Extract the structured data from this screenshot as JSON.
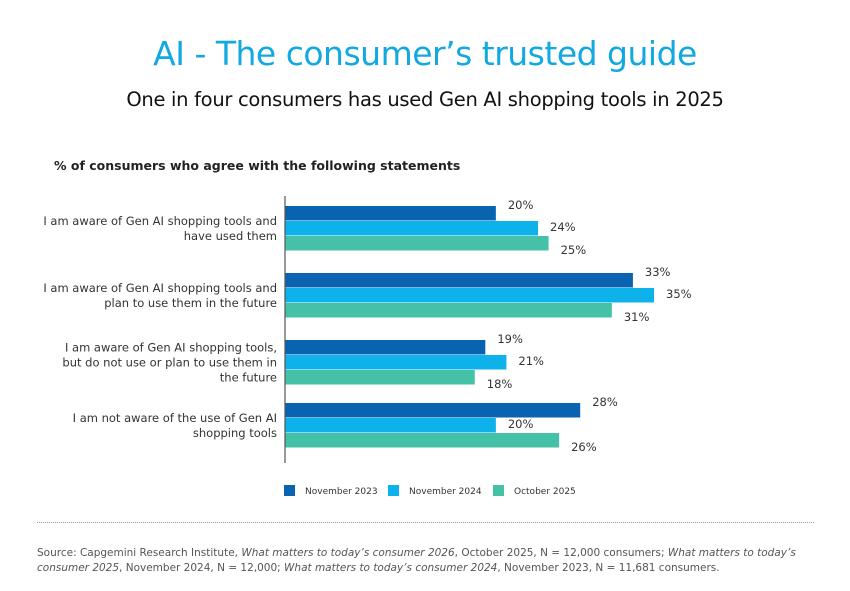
{
  "header": {
    "title": "AI - The consumer’s trusted guide",
    "subtitle": "One in four consumers has used Gen AI shopping tools in 2025"
  },
  "chart_data": {
    "type": "bar",
    "orientation": "horizontal",
    "title": "% of consumers who agree with the following statements",
    "xlabel": "",
    "ylabel": "",
    "xlim": [
      0,
      35
    ],
    "grid": false,
    "legend_position": "bottom",
    "categories": [
      [
        "I am aware of Gen AI shopping tools and",
        "have used them"
      ],
      [
        "I am aware of Gen AI shopping tools and",
        "plan to use them in the future"
      ],
      [
        "I am aware of Gen AI shopping tools,",
        "but do not use or plan to use them in",
        "the future"
      ],
      [
        "I am not aware of the use of Gen AI",
        "shopping tools"
      ]
    ],
    "series": [
      {
        "name": "November 2023",
        "color": "#0a63b0",
        "values": [
          20,
          33,
          19,
          28
        ],
        "labels": [
          "20%",
          "33%",
          "19%",
          "28%"
        ]
      },
      {
        "name": "November 2024",
        "color": "#0db2ea",
        "values": [
          24,
          35,
          21,
          20
        ],
        "labels": [
          "24%",
          "35%",
          "21%",
          "20%"
        ]
      },
      {
        "name": "October 2025",
        "color": "#44c1a6",
        "values": [
          25,
          31,
          18,
          26
        ],
        "labels": [
          "25%",
          "31%",
          "18%",
          "26%"
        ]
      }
    ]
  },
  "source": {
    "prefix": "Source: Capgemini Research Institute, ",
    "r1_title": "What matters to today’s consumer 2026",
    "r1_rest": ", October 2025, N = 12,000 consumers; ",
    "r2_title": "What matters to today’s consumer 2025",
    "r2_rest": ", November 2024, N = 12,000; ",
    "r3_title": "What matters to today’s consumer 2024",
    "r3_rest": ", November 2023, N = 11,681 consumers."
  }
}
